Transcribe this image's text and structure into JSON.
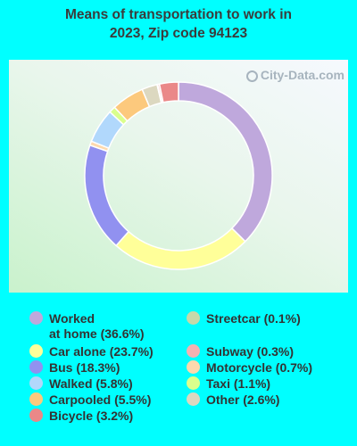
{
  "title_line1": "Means of transportation to work in",
  "title_line2": "2023, Zip code 94123",
  "watermark": "City-Data.com",
  "chart_data": {
    "type": "pie",
    "title": "Means of transportation to work in 2023, Zip code 94123",
    "donut": true,
    "legend_placement": "bottom",
    "slices": [
      {
        "name": "Worked at home",
        "label_line1": "Worked",
        "label_line2": "at home (36.6%)",
        "value": 36.6,
        "color": "#bfa8dc"
      },
      {
        "name": "Car alone",
        "label": "Car alone (23.7%)",
        "value": 23.7,
        "color": "#ffff99"
      },
      {
        "name": "Bus",
        "label": "Bus (18.3%)",
        "value": 18.3,
        "color": "#9191f0"
      },
      {
        "name": "Motorcycle",
        "label": "Motorcycle (0.7%)",
        "value": 0.7,
        "color": "#fdd9ad"
      },
      {
        "name": "Walked",
        "label": "Walked (5.8%)",
        "value": 5.8,
        "color": "#b1d8fc"
      },
      {
        "name": "Taxi",
        "label": "Taxi (1.1%)",
        "value": 1.1,
        "color": "#daff8c"
      },
      {
        "name": "Carpooled",
        "label": "Carpooled (5.5%)",
        "value": 5.5,
        "color": "#fcc97d"
      },
      {
        "name": "Other",
        "label": "Other (2.6%)",
        "value": 2.6,
        "color": "#dcd8c0"
      },
      {
        "name": "Streetcar",
        "label": "Streetcar (0.1%)",
        "value": 0.1,
        "color": "#c6d9a9"
      },
      {
        "name": "Subway",
        "label": "Subway (0.3%)",
        "value": 0.3,
        "color": "#f5b1b1"
      },
      {
        "name": "Bicycle",
        "label": "Bicycle (3.2%)",
        "value": 3.2,
        "color": "#ea8888"
      }
    ],
    "legend_left": [
      "Worked at home",
      "Car alone",
      "Bus",
      "Walked",
      "Carpooled",
      "Bicycle"
    ],
    "legend_right": [
      "Streetcar",
      "Subway",
      "Motorcycle",
      "Taxi",
      "Other"
    ]
  }
}
